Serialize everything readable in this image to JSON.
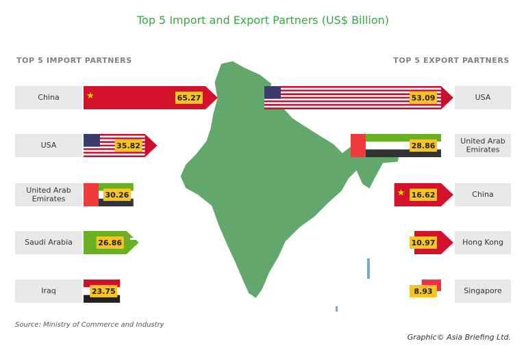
{
  "title": "Top 5 Import and Export Partners (US$ Billion)",
  "import_heading": "TOP 5 IMPORT PARTNERS",
  "export_heading": "TOP 5 EXPORT PARTNERS",
  "source": "Source: Ministry of Commerce and Industry",
  "credit": "Graphic© Asia Briefing Ltd.",
  "colors": {
    "title_green": "#3aa648",
    "label_box": "#e8e8e8",
    "value_box": "#f7c325",
    "map_green": "#62a86c",
    "flag_red": "#d3122b",
    "flag_green": "#6ab023",
    "dark": "#333333"
  },
  "chart_data": [
    {
      "type": "bar",
      "title": "TOP 5 IMPORT PARTNERS",
      "categories": [
        "China",
        "USA",
        "United Arab Emirates",
        "Saudi Arabia",
        "Iraq"
      ],
      "values": [
        65.27,
        35.82,
        30.26,
        26.86,
        23.75
      ],
      "value_labels": [
        "65.27",
        "35.82",
        "30.26",
        "26.86",
        "23.75"
      ],
      "unit": "US$ Billion",
      "orientation": "horizontal-arrows-pointing-right",
      "flag_icons": [
        "china-flag-icon",
        "usa-flag-icon",
        "uae-flag-icon",
        "saudi-flag-icon",
        "iraq-flag-icon"
      ]
    },
    {
      "type": "bar",
      "title": "TOP 5 EXPORT PARTNERS",
      "categories": [
        "USA",
        "United Arab Emirates",
        "China",
        "Hong Kong",
        "Singapore"
      ],
      "values": [
        53.09,
        28.86,
        16.62,
        10.97,
        8.93
      ],
      "value_labels": [
        "53.09",
        "28.86",
        "16.62",
        "10.97",
        "8.93"
      ],
      "unit": "US$ Billion",
      "orientation": "horizontal-arrows-pointing-right",
      "flag_icons": [
        "usa-flag-icon",
        "uae-flag-icon",
        "china-flag-icon",
        "hong-kong-flag-icon",
        "singapore-flag-icon"
      ]
    }
  ]
}
